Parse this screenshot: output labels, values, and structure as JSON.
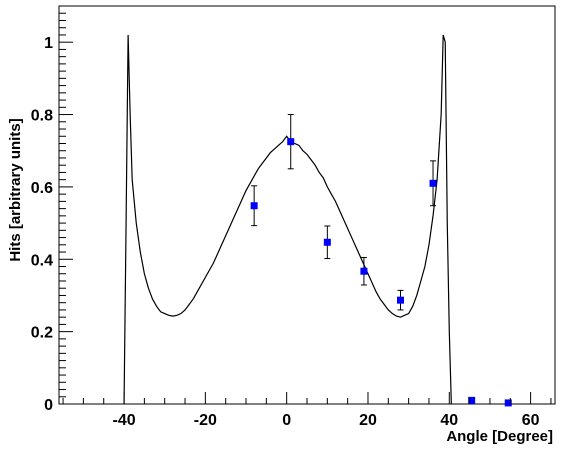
{
  "chart_data": {
    "type": "scatter",
    "xlabel": "Angle [Degree]",
    "ylabel": "Hits [arbitrary units]",
    "xlim": [
      -56,
      66
    ],
    "ylim": [
      0,
      1.1
    ],
    "x_ticks": [
      -40,
      -20,
      0,
      20,
      40,
      60
    ],
    "y_ticks": [
      0,
      0.2,
      0.4,
      0.6,
      0.8,
      1
    ],
    "x_tick_labels": [
      "-40",
      "-20",
      "0",
      "20",
      "40",
      "60"
    ],
    "y_tick_labels": [
      "0",
      "0.2",
      "0.4",
      "0.6",
      "0.8",
      "1"
    ],
    "grid": false,
    "legend": "none",
    "series": [
      {
        "kind": "line",
        "color": "#000000",
        "x": [
          -40,
          -39.5,
          -39,
          -38.5,
          -38,
          -37,
          -36,
          -35,
          -34,
          -33,
          -32,
          -31,
          -30,
          -29,
          -28,
          -27,
          -26,
          -25,
          -24,
          -23,
          -22,
          -21,
          -20,
          -19,
          -18,
          -17,
          -16,
          -15,
          -14,
          -13,
          -12,
          -11,
          -10,
          -9,
          -8,
          -7,
          -6,
          -5,
          -4,
          -3,
          -2,
          -1,
          0,
          1,
          2,
          3,
          4,
          5,
          6,
          7,
          8,
          9,
          10,
          11,
          12,
          13,
          14,
          15,
          16,
          17,
          18,
          19,
          20,
          21,
          22,
          23,
          24,
          25,
          26,
          27,
          28,
          29,
          30,
          31,
          32,
          33,
          34,
          35,
          36,
          37,
          38,
          38.5,
          39,
          39.5,
          40,
          40.5
        ],
        "y": [
          0,
          0.5,
          1.02,
          0.8,
          0.62,
          0.5,
          0.42,
          0.36,
          0.32,
          0.29,
          0.27,
          0.255,
          0.25,
          0.245,
          0.243,
          0.245,
          0.25,
          0.26,
          0.275,
          0.29,
          0.31,
          0.33,
          0.35,
          0.37,
          0.39,
          0.415,
          0.44,
          0.465,
          0.49,
          0.515,
          0.54,
          0.565,
          0.59,
          0.61,
          0.63,
          0.65,
          0.665,
          0.68,
          0.695,
          0.705,
          0.715,
          0.725,
          0.74,
          0.725,
          0.72,
          0.715,
          0.7,
          0.69,
          0.675,
          0.66,
          0.64,
          0.625,
          0.6,
          0.58,
          0.56,
          0.535,
          0.51,
          0.485,
          0.46,
          0.435,
          0.41,
          0.385,
          0.36,
          0.335,
          0.31,
          0.29,
          0.275,
          0.26,
          0.25,
          0.243,
          0.24,
          0.245,
          0.25,
          0.27,
          0.3,
          0.34,
          0.38,
          0.44,
          0.52,
          0.62,
          0.8,
          1.02,
          1.0,
          0.5,
          0.2,
          0
        ]
      },
      {
        "kind": "points",
        "color": "#0000ff",
        "x": [
          -8,
          1,
          10,
          19,
          28,
          36,
          45.5,
          54.5
        ],
        "y": [
          0.548,
          0.725,
          0.447,
          0.367,
          0.287,
          0.61,
          0.01,
          0.003
        ],
        "y_err": [
          0.055,
          0.075,
          0.045,
          0.038,
          0.027,
          0.062,
          0,
          0
        ]
      }
    ]
  }
}
